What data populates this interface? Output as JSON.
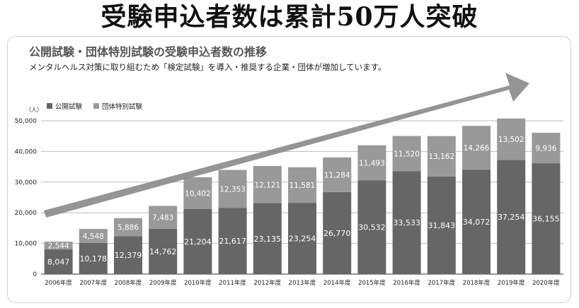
{
  "headline": "受験申込者数は累計50万人突破",
  "chart_data": {
    "type": "bar",
    "stacked": true,
    "title": "公開試験・団体特別試験の受験申込者数の推移",
    "subtitle": "メンタルヘルス対策に取り組むため「検定試験」を導入・推奨する企業・団体が増加しています。",
    "unit_label": "（人）",
    "categories": [
      "2006年度",
      "2007年度",
      "2008年度",
      "2009年度",
      "2010年度",
      "2011年度",
      "2012年度",
      "2013年度",
      "2014年度",
      "2015年度",
      "2016年度",
      "2017年度",
      "2018年度",
      "2019年度",
      "2020年度"
    ],
    "series": [
      {
        "name": "公開試験",
        "color": "#666666",
        "label_color": "#ffffff",
        "values": [
          8047,
          10178,
          12379,
          14762,
          21204,
          21617,
          23135,
          23254,
          26770,
          30532,
          33533,
          31843,
          34072,
          37254,
          36155
        ]
      },
      {
        "name": "団体特別試験",
        "color": "#999999",
        "label_color": "#ffffff",
        "values": [
          2544,
          4548,
          5886,
          7483,
          10402,
          12353,
          12121,
          11581,
          11284,
          11493,
          11520,
          13162,
          14266,
          13502,
          9936
        ]
      }
    ],
    "ylim": [
      0,
      50000
    ],
    "yticks": [
      0,
      10000,
      20000,
      30000,
      40000,
      50000
    ],
    "ytick_labels": [
      "0",
      "10,000",
      "20,000",
      "30,000",
      "40,000",
      "50,000"
    ],
    "grid": true,
    "legend_position": "top-left",
    "trend_arrow": true,
    "arrow_color": "#8a8a8a"
  }
}
